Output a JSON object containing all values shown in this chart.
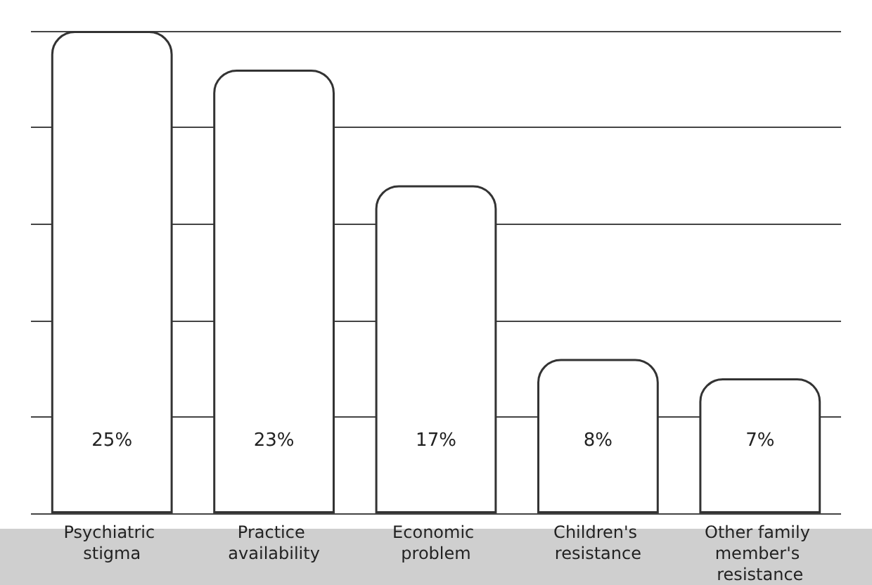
{
  "chart_data": {
    "type": "bar",
    "categories": [
      "Psychiatric stigma",
      "Practice availability",
      "Economic problem",
      "Children's resistance",
      "Other family member's resistance"
    ],
    "values": [
      25,
      23,
      17,
      8,
      7
    ],
    "value_labels": [
      "25%",
      "23%",
      "17%",
      "8%",
      "7%"
    ],
    "color": "#ffffff",
    "grid": "y",
    "tick_labels": "x"
  }
}
